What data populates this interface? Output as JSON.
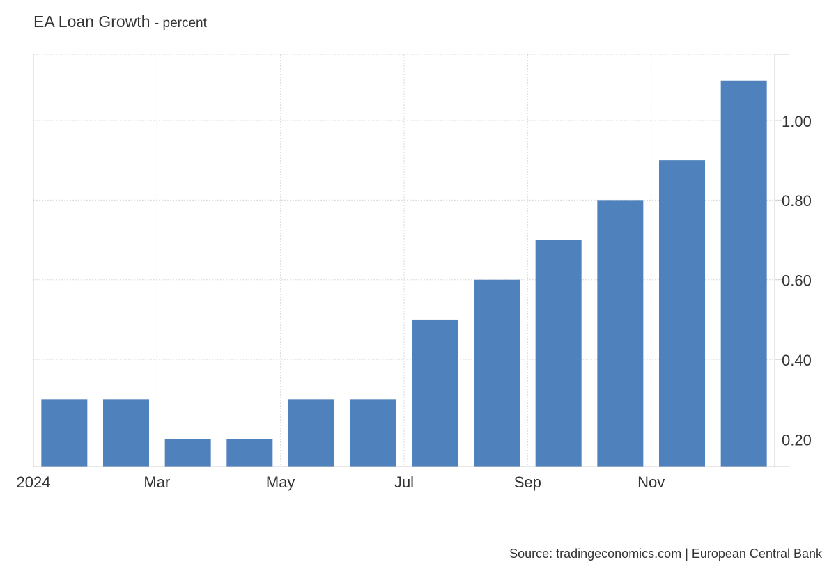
{
  "header": {
    "title": "EA Loan Growth",
    "subtitle": "- percent"
  },
  "footer": {
    "source": "Source: tradingeconomics.com | European Central Bank"
  },
  "colors": {
    "bar": "#4f81bd",
    "grid": "#d9d9d9",
    "text": "#333333"
  },
  "chart_data": {
    "type": "bar",
    "title": "EA Loan Growth",
    "subtitle": "- percent",
    "categories": [
      "2024-01",
      "2024-02",
      "2024-03",
      "2024-04",
      "2024-05",
      "2024-06",
      "2024-07",
      "2024-08",
      "2024-09",
      "2024-10",
      "2024-11",
      "2024-12"
    ],
    "values": [
      0.3,
      0.3,
      0.2,
      0.2,
      0.3,
      0.3,
      0.5,
      0.6,
      0.7,
      0.8,
      0.9,
      1.1
    ],
    "x_tick_labels": [
      {
        "index": 0,
        "label": "2024"
      },
      {
        "index": 2,
        "label": "Mar"
      },
      {
        "index": 4,
        "label": "May"
      },
      {
        "index": 6,
        "label": "Jul"
      },
      {
        "index": 8,
        "label": "Sep"
      },
      {
        "index": 10,
        "label": "Nov"
      }
    ],
    "y_ticks": [
      0.2,
      0.4,
      0.6,
      0.8,
      1.0
    ],
    "y_tick_labels": [
      "0.20",
      "0.40",
      "0.60",
      "0.80",
      "1.00"
    ],
    "ylim": [
      0.131,
      1.166
    ],
    "y_axis_side": "right",
    "grid": true
  }
}
